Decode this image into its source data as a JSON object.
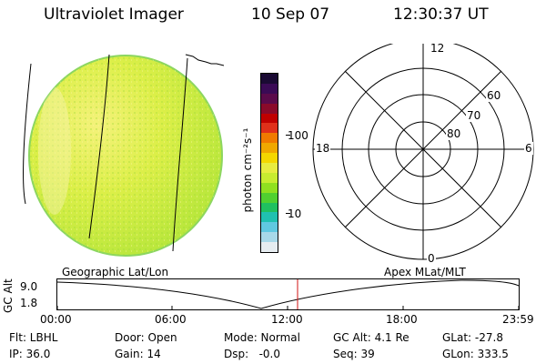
{
  "header": {
    "title": "Ultraviolet Imager",
    "date": "10 Sep 07",
    "time": "12:30:37 UT"
  },
  "colorbar": {
    "unit_label": "photon cm⁻²s⁻¹",
    "ticks": [
      "100",
      "10"
    ],
    "colors_top_to_bottom": [
      "#1a0a33",
      "#3a0a55",
      "#5a0a4a",
      "#8a0a2a",
      "#c00000",
      "#e0301a",
      "#f07a00",
      "#f0a800",
      "#f4d700",
      "#e8ec40",
      "#c8ec30",
      "#90e020",
      "#50d030",
      "#20c060",
      "#20c0b0",
      "#60c8e0",
      "#a8d8e8",
      "#e6ecf0"
    ]
  },
  "polar": {
    "lat_labels": [
      "60",
      "70",
      "80"
    ],
    "mlt_labels": {
      "top": "12",
      "bottom": "0",
      "left": "18",
      "right": "6"
    }
  },
  "timeline": {
    "left_label": "Geographic Lat/Lon",
    "right_label": "Apex MLat/MLT",
    "axis_label": "GC Alt",
    "y_ticks": [
      "9.0",
      "1.8"
    ],
    "x_ticks": [
      "00:00",
      "06:00",
      "12:00",
      "18:00",
      "23:59"
    ],
    "marker_time": "12:30"
  },
  "info": {
    "flt": "Flt: LBHL",
    "ip": "IP: 36.0",
    "door": "Door: Open",
    "gain": "Gain: 14",
    "mode": "Mode: Normal",
    "dsp": "Dsp:   -0.0",
    "gc_alt": "GC Alt: 4.1 Re",
    "seq": "Seq: 39",
    "glat": "GLat: -27.8",
    "glon": "GLon: 333.5"
  }
}
